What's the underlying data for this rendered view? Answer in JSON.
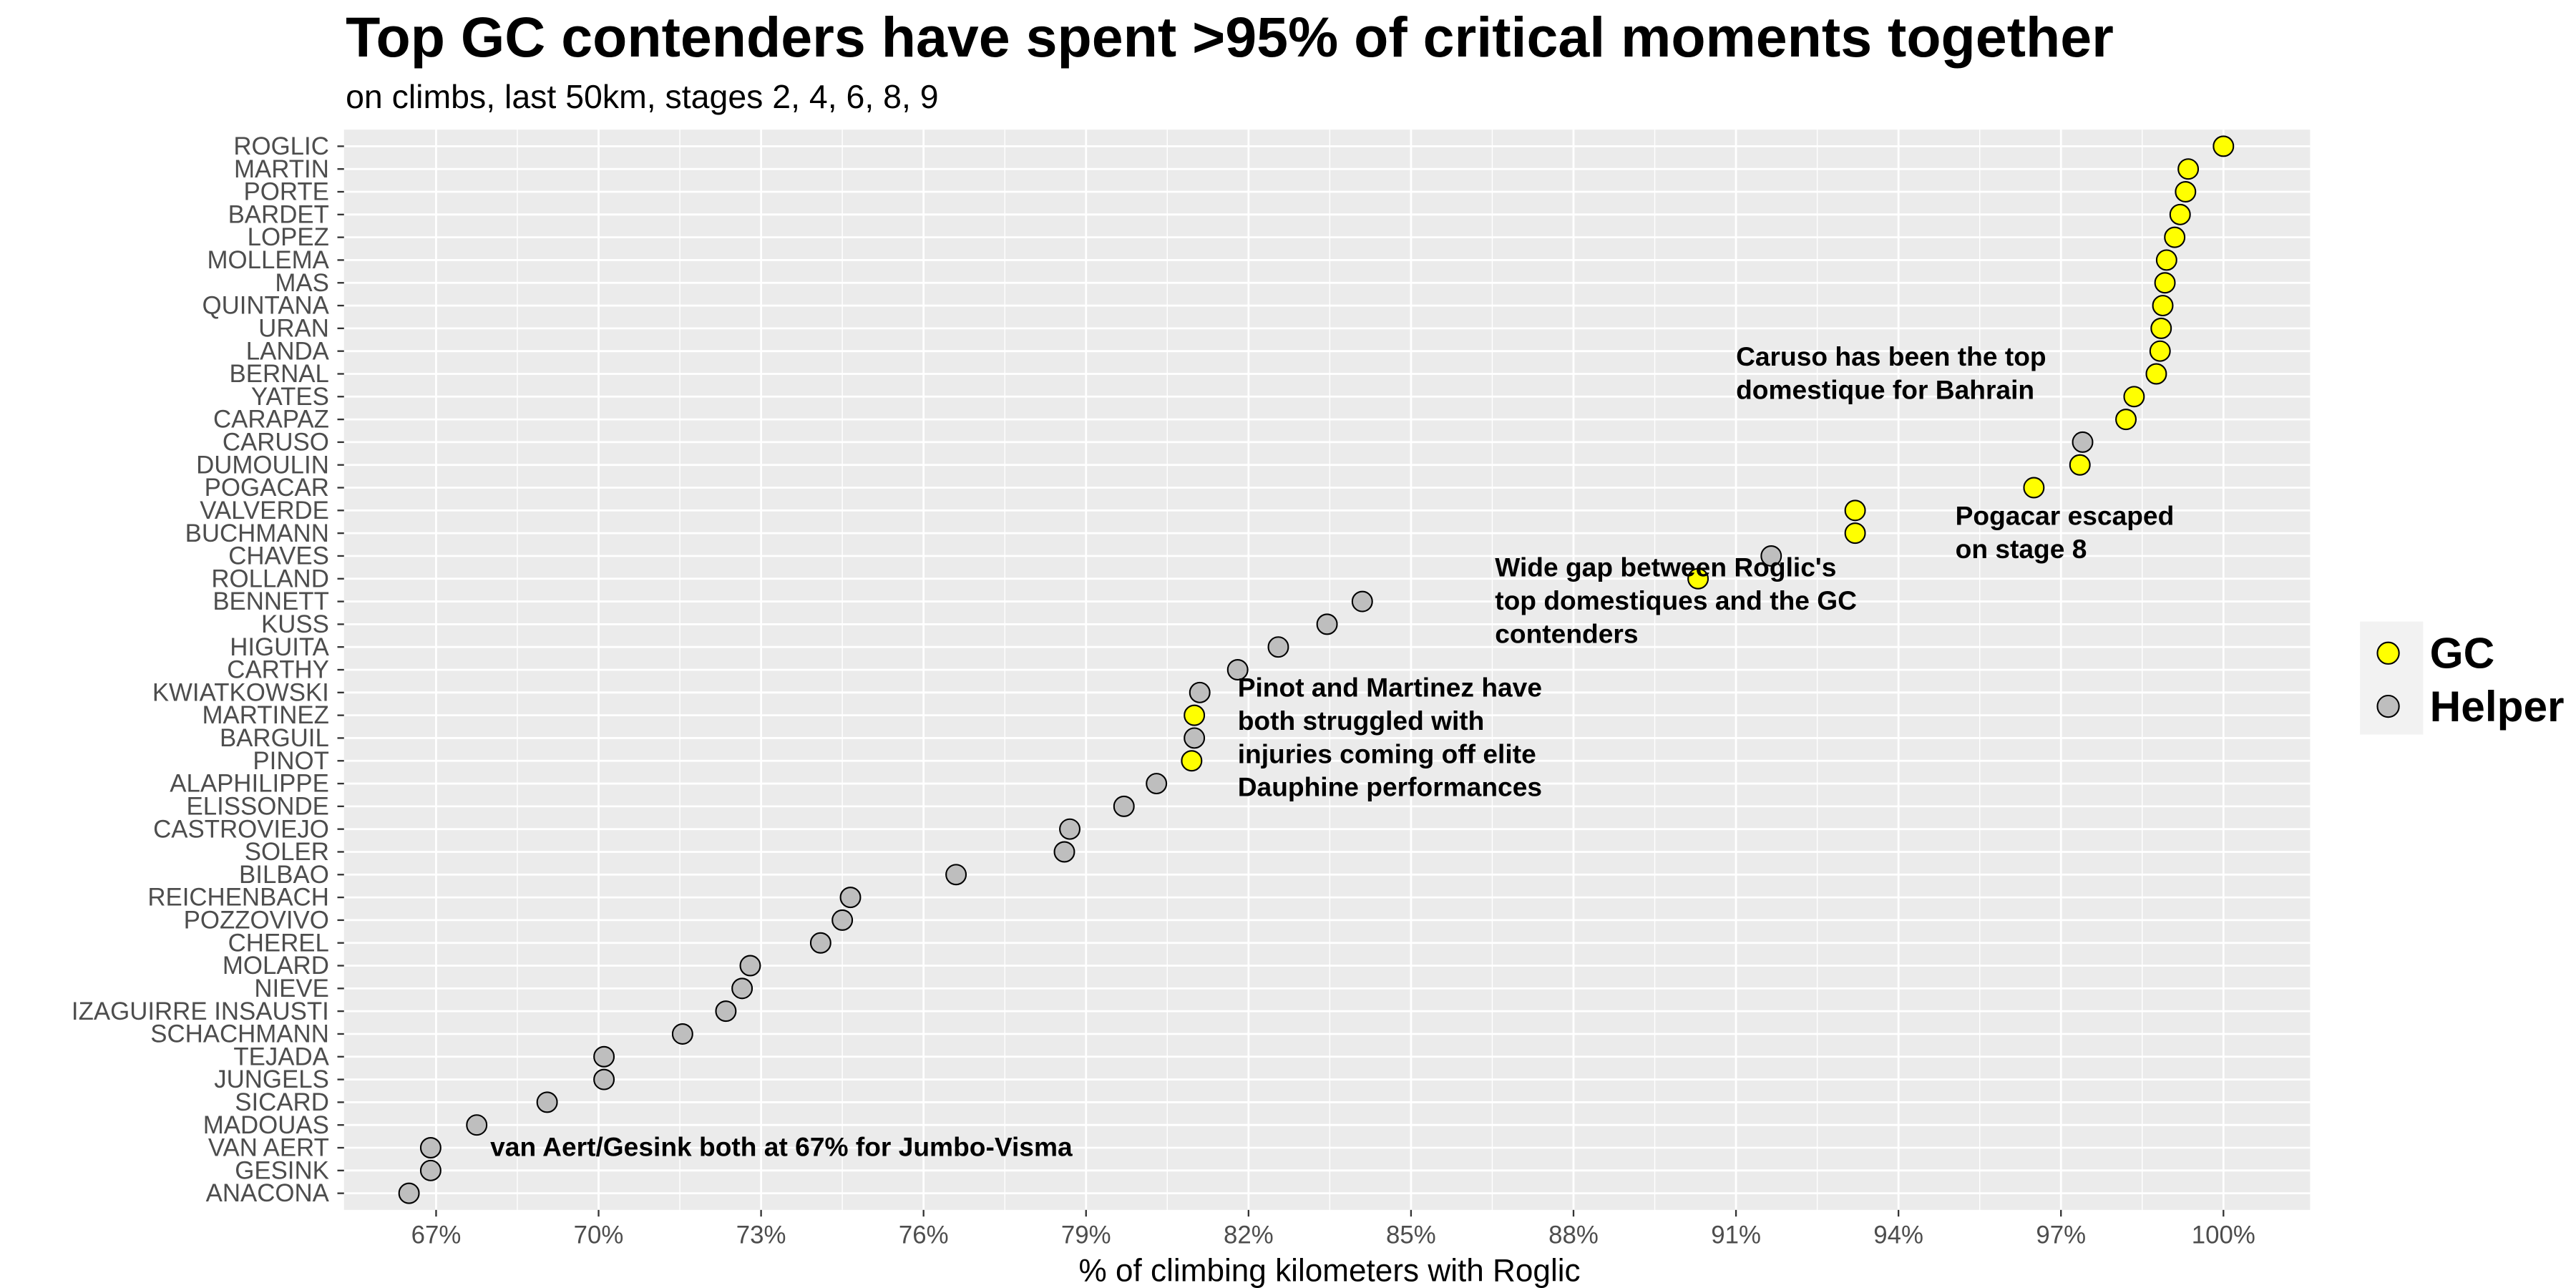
{
  "chart_data": {
    "type": "scatter",
    "title": "Top GC contenders have spent >95% of critical moments together",
    "subtitle": "on climbs, last 50km, stages 2, 4, 6, 8, 9",
    "xlabel": "% of climbing kilometers with Roglic",
    "xlim": [
      0.653,
      1.016
    ],
    "x_ticks": [
      0.67,
      0.7,
      0.73,
      0.76,
      0.79,
      0.82,
      0.85,
      0.88,
      0.91,
      0.94,
      0.97,
      1.0
    ],
    "x_tick_labels": [
      "67%",
      "70%",
      "73%",
      "76%",
      "79%",
      "82%",
      "85%",
      "88%",
      "91%",
      "94%",
      "97%",
      "100%"
    ],
    "grid": true,
    "legend_position": "right",
    "colors": {
      "GC": "#ffff00",
      "Helper": "#bebebe",
      "panel": "#ebebeb",
      "grid": "#ffffff",
      "point_stroke": "#000000"
    },
    "legend": [
      {
        "key": "GC",
        "label": "GC"
      },
      {
        "key": "Helper",
        "label": "Helper"
      }
    ],
    "points": [
      {
        "rider": "ROGLIC",
        "value": 1.0,
        "group": "GC"
      },
      {
        "rider": "MARTIN",
        "value": 0.9935,
        "group": "GC"
      },
      {
        "rider": "PORTE",
        "value": 0.993,
        "group": "GC"
      },
      {
        "rider": "BARDET",
        "value": 0.992,
        "group": "GC"
      },
      {
        "rider": "LOPEZ",
        "value": 0.991,
        "group": "GC"
      },
      {
        "rider": "MOLLEMA",
        "value": 0.9895,
        "group": "GC"
      },
      {
        "rider": "MAS",
        "value": 0.9892,
        "group": "GC"
      },
      {
        "rider": "QUINTANA",
        "value": 0.9888,
        "group": "GC"
      },
      {
        "rider": "URAN",
        "value": 0.9885,
        "group": "GC"
      },
      {
        "rider": "LANDA",
        "value": 0.9883,
        "group": "GC"
      },
      {
        "rider": "BERNAL",
        "value": 0.9876,
        "group": "GC"
      },
      {
        "rider": "YATES",
        "value": 0.9835,
        "group": "GC"
      },
      {
        "rider": "CARAPAZ",
        "value": 0.982,
        "group": "GC"
      },
      {
        "rider": "CARUSO",
        "value": 0.974,
        "group": "Helper"
      },
      {
        "rider": "DUMOULIN",
        "value": 0.9735,
        "group": "GC"
      },
      {
        "rider": "POGACAR",
        "value": 0.965,
        "group": "GC"
      },
      {
        "rider": "VALVERDE",
        "value": 0.932,
        "group": "GC"
      },
      {
        "rider": "BUCHMANN",
        "value": 0.932,
        "group": "GC"
      },
      {
        "rider": "CHAVES",
        "value": 0.9165,
        "group": "Helper"
      },
      {
        "rider": "ROLLAND",
        "value": 0.903,
        "group": "GC"
      },
      {
        "rider": "BENNETT",
        "value": 0.841,
        "group": "Helper"
      },
      {
        "rider": "KUSS",
        "value": 0.8345,
        "group": "Helper"
      },
      {
        "rider": "HIGUITA",
        "value": 0.8255,
        "group": "Helper"
      },
      {
        "rider": "CARTHY",
        "value": 0.818,
        "group": "Helper"
      },
      {
        "rider": "KWIATKOWSKI",
        "value": 0.811,
        "group": "Helper"
      },
      {
        "rider": "MARTINEZ",
        "value": 0.81,
        "group": "GC"
      },
      {
        "rider": "BARGUIL",
        "value": 0.81,
        "group": "Helper"
      },
      {
        "rider": "PINOT",
        "value": 0.8095,
        "group": "GC"
      },
      {
        "rider": "ALAPHILIPPE",
        "value": 0.803,
        "group": "Helper"
      },
      {
        "rider": "ELISSONDE",
        "value": 0.797,
        "group": "Helper"
      },
      {
        "rider": "CASTROVIEJO",
        "value": 0.787,
        "group": "Helper"
      },
      {
        "rider": "SOLER",
        "value": 0.786,
        "group": "Helper"
      },
      {
        "rider": "BILBAO",
        "value": 0.766,
        "group": "Helper"
      },
      {
        "rider": "REICHENBACH",
        "value": 0.7465,
        "group": "Helper"
      },
      {
        "rider": "POZZOVIVO",
        "value": 0.745,
        "group": "Helper"
      },
      {
        "rider": "CHEREL",
        "value": 0.741,
        "group": "Helper"
      },
      {
        "rider": "MOLARD",
        "value": 0.728,
        "group": "Helper"
      },
      {
        "rider": "NIEVE",
        "value": 0.7265,
        "group": "Helper"
      },
      {
        "rider": "IZAGUIRRE INSAUSTI",
        "value": 0.7235,
        "group": "Helper"
      },
      {
        "rider": "SCHACHMANN",
        "value": 0.7155,
        "group": "Helper"
      },
      {
        "rider": "TEJADA",
        "value": 0.701,
        "group": "Helper"
      },
      {
        "rider": "JUNGELS",
        "value": 0.701,
        "group": "Helper"
      },
      {
        "rider": "SICARD",
        "value": 0.6905,
        "group": "Helper"
      },
      {
        "rider": "MADOUAS",
        "value": 0.6775,
        "group": "Helper"
      },
      {
        "rider": "VAN AERT",
        "value": 0.669,
        "group": "Helper"
      },
      {
        "rider": "GESINK",
        "value": 0.669,
        "group": "Helper"
      },
      {
        "rider": "ANACONA",
        "value": 0.665,
        "group": "Helper"
      }
    ],
    "annotations": [
      {
        "lines": [
          "Caruso has been the top",
          "domestique for Bahrain"
        ],
        "x": 0.91,
        "y_rider": "BERNAL"
      },
      {
        "lines": [
          "Pogacar escaped",
          "on stage 8"
        ],
        "x": 0.9505,
        "y_rider": "BUCHMANN"
      },
      {
        "lines": [
          "Wide gap between Roglic's",
          "top domestiques and the GC",
          "contenders"
        ],
        "x": 0.8655,
        "y_rider": "BENNETT"
      },
      {
        "lines": [
          "Pinot and Martinez have",
          "both struggled with",
          "injuries coming off elite",
          "Dauphine performances"
        ],
        "x": 0.818,
        "y_rider": "BARGUIL"
      },
      {
        "lines": [
          "van Aert/Gesink both at 67% for Jumbo-Visma"
        ],
        "x": 0.68,
        "y_rider": "VAN AERT"
      }
    ]
  }
}
